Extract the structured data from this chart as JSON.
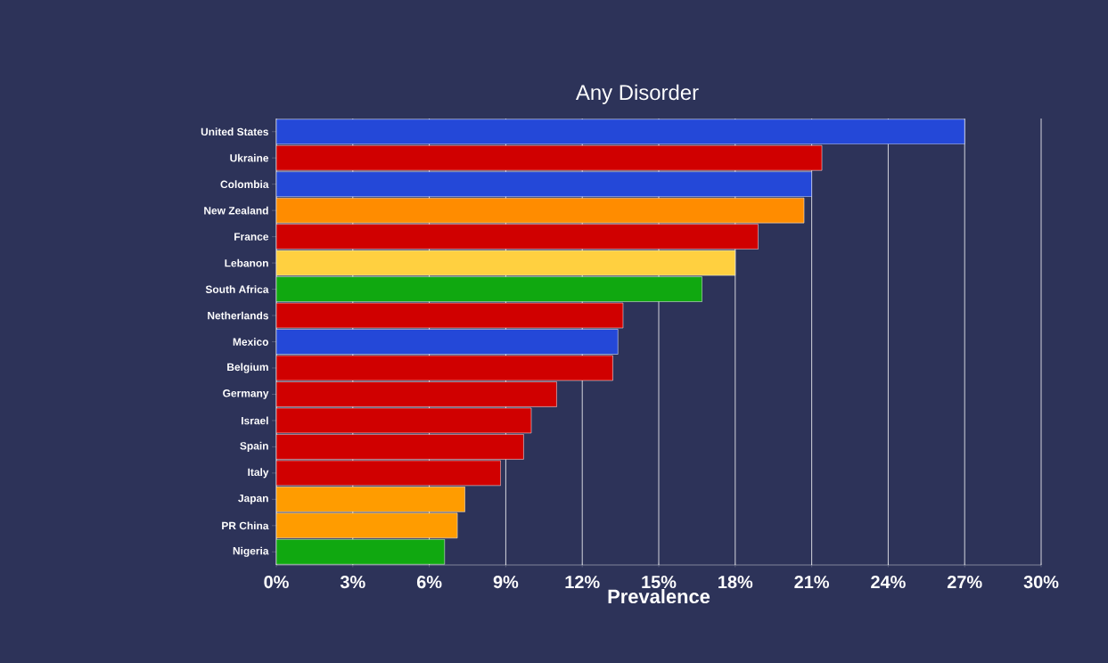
{
  "chart_data": {
    "type": "bar",
    "orientation": "horizontal",
    "title": "Any Disorder",
    "xlabel": "Prevalence",
    "categories": [
      "United States",
      "Ukraine",
      "Colombia",
      "New Zealand",
      "France",
      "Lebanon",
      "South Africa",
      "Netherlands",
      "Mexico",
      "Belgium",
      "Germany",
      "Israel",
      "Spain",
      "Italy",
      "Japan",
      "PR China",
      "Nigeria"
    ],
    "values": [
      27.0,
      21.4,
      21.0,
      20.7,
      18.9,
      18.0,
      16.7,
      13.6,
      13.4,
      13.2,
      11.0,
      10.0,
      9.7,
      8.8,
      7.4,
      7.1,
      6.6
    ],
    "colors": [
      "#2448d8",
      "#d00000",
      "#2448d8",
      "#ff8c00",
      "#d00000",
      "#ffd040",
      "#10a810",
      "#d00000",
      "#2448d8",
      "#d00000",
      "#d00000",
      "#d00000",
      "#d00000",
      "#d00000",
      "#ff9c00",
      "#ff9c00",
      "#10a810"
    ],
    "xlim": [
      0,
      30
    ],
    "xticks": [
      {
        "value": 0,
        "label": "0%"
      },
      {
        "value": 3,
        "label": "3%"
      },
      {
        "value": 6,
        "label": "6%"
      },
      {
        "value": 9,
        "label": "9%"
      },
      {
        "value": 12,
        "label": "12%"
      },
      {
        "value": 15,
        "label": "15%"
      },
      {
        "value": 18,
        "label": "18%"
      },
      {
        "value": 21,
        "label": "21%"
      },
      {
        "value": 24,
        "label": "24%"
      },
      {
        "value": 27,
        "label": "27%"
      },
      {
        "value": 30,
        "label": "30%"
      }
    ],
    "grid": "x"
  }
}
